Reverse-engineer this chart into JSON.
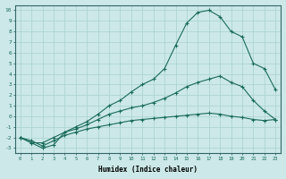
{
  "xlabel": "Humidex (Indice chaleur)",
  "ylabel": "",
  "background_color": "#cce8e8",
  "grid_color": "#aed4d4",
  "line_color": "#1a6b5a",
  "xlim": [
    -0.5,
    23.5
  ],
  "ylim": [
    -3.5,
    10.5
  ],
  "xticks": [
    0,
    1,
    2,
    3,
    4,
    5,
    6,
    7,
    8,
    9,
    10,
    11,
    12,
    13,
    14,
    15,
    16,
    17,
    18,
    19,
    20,
    21,
    22,
    23
  ],
  "yticks": [
    -3,
    -2,
    -1,
    0,
    1,
    2,
    3,
    4,
    5,
    6,
    7,
    8,
    9,
    10
  ],
  "line1_x": [
    0,
    1,
    2,
    3,
    4,
    5,
    6,
    7,
    8,
    9,
    10,
    11,
    12,
    13,
    14,
    15,
    16,
    17,
    18,
    19,
    20,
    21,
    22,
    23
  ],
  "line1_y": [
    -2.0,
    -2.5,
    -3.0,
    -2.7,
    -1.5,
    -1.0,
    -0.5,
    0.2,
    1.0,
    1.5,
    2.3,
    3.0,
    3.5,
    4.5,
    6.7,
    8.8,
    9.8,
    10.0,
    9.4,
    8.0,
    7.5,
    5.0,
    4.5,
    2.5
  ],
  "line2_x": [
    0,
    1,
    2,
    3,
    4,
    5,
    6,
    7,
    8,
    9,
    10,
    11,
    12,
    13,
    14,
    15,
    16,
    17,
    18,
    19,
    20,
    21,
    22,
    23
  ],
  "line2_y": [
    -2.0,
    -2.5,
    -2.5,
    -2.0,
    -1.5,
    -1.2,
    -0.8,
    -0.3,
    0.2,
    0.5,
    0.8,
    1.0,
    1.3,
    1.7,
    2.2,
    2.8,
    3.2,
    3.5,
    3.8,
    3.2,
    2.8,
    1.5,
    0.5,
    -0.3
  ],
  "line3_x": [
    0,
    1,
    2,
    3,
    4,
    5,
    6,
    7,
    8,
    9,
    10,
    11,
    12,
    13,
    14,
    15,
    16,
    17,
    18,
    19,
    20,
    21,
    22,
    23
  ],
  "line3_y": [
    -2.0,
    -2.3,
    -2.8,
    -2.3,
    -1.8,
    -1.5,
    -1.2,
    -1.0,
    -0.8,
    -0.6,
    -0.4,
    -0.3,
    -0.2,
    -0.1,
    0.0,
    0.1,
    0.2,
    0.3,
    0.2,
    0.0,
    -0.1,
    -0.3,
    -0.4,
    -0.3
  ],
  "marker": "+",
  "markersize": 3,
  "linewidth": 0.8
}
